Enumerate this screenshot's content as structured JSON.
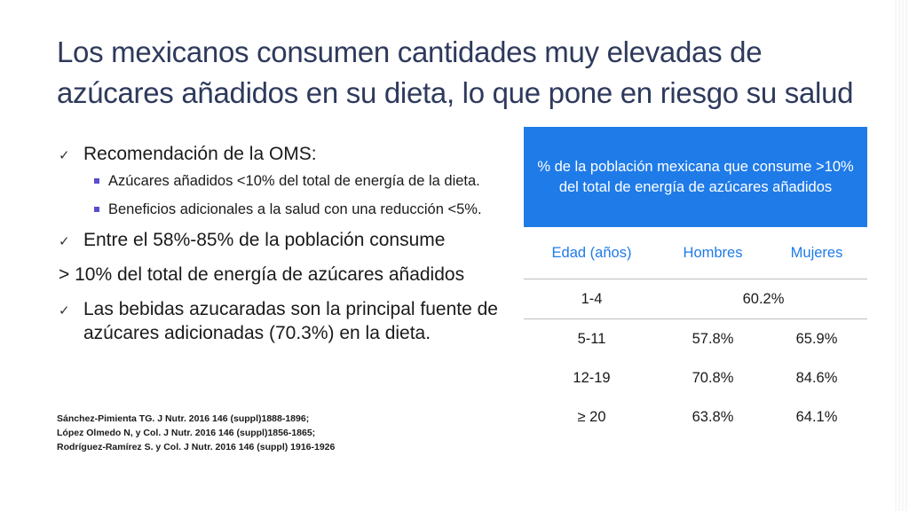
{
  "title": {
    "line1": "Los mexicanos consumen cantidades muy elevadas de",
    "line2": "azúcares añadidos en su dieta, lo que pone en riesgo su salud"
  },
  "bullets": {
    "item1": "Recomendación de la OMS:",
    "sub1": "Azúcares añadidos <10% del total de energía de la dieta.",
    "sub2": "Beneficios adicionales a la salud con una reducción <5%.",
    "item2": "Entre el 58%-85% de la población consume",
    "item2_cont": "> 10% del total de energía de azúcares añadidos",
    "item3_line1": "Las bebidas azucaradas son la principal fuente de",
    "item3_line2": "azúcares adicionadas (70.3%) en la dieta."
  },
  "references": [
    "Sánchez-Pimienta TG. J Nutr. 2016 146 (suppl)1888-1896;",
    "López Olmedo N, y Col. J Nutr. 2016 146 (suppl)1856-1865;",
    "Rodríguez-Ramírez S. y Col. J Nutr. 2016 146 (suppl) 1916-1926"
  ],
  "table": {
    "header_line1": "% de la población mexicana que consume >10%",
    "header_line2": "del total de energía de azúcares añadidos",
    "columns": [
      "Edad (años)",
      "Hombres",
      "Mujeres"
    ],
    "rows": [
      {
        "age": "1-4",
        "combined": "60.2%"
      },
      {
        "age": "5-11",
        "men": "57.8%",
        "women": "65.9%"
      },
      {
        "age": "12-19",
        "men": "70.8%",
        "women": "84.6%"
      },
      {
        "age": "≥ 20",
        "men": "63.8%",
        "women": "64.1%"
      }
    ]
  },
  "colors": {
    "title": "#2e3a5c",
    "accent_blue": "#1f7be8",
    "bullet_square": "#5a4fcf"
  },
  "icons": {
    "bullet_check": "check-icon",
    "sub_bullet": "square-bullet-icon"
  }
}
